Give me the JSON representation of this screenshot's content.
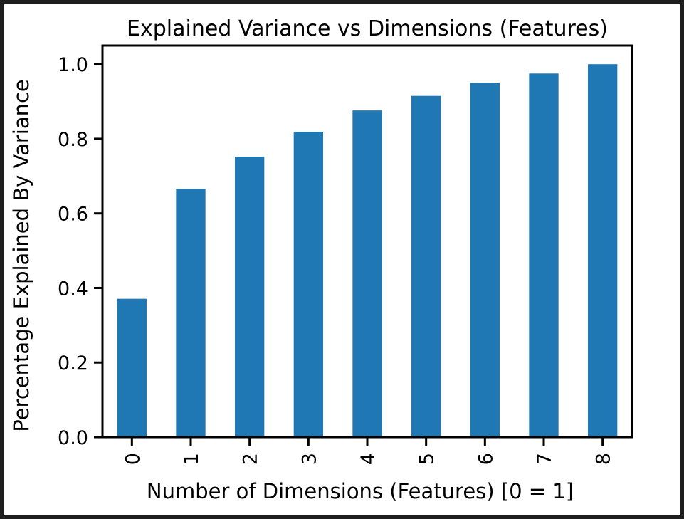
{
  "chart_data": {
    "type": "bar",
    "title": "Explained Variance vs Dimensions (Features)",
    "xlabel": "Number of Dimensions (Features) [0 = 1]",
    "ylabel": "Percentage Explained By Variance",
    "categories": [
      "0",
      "1",
      "2",
      "3",
      "4",
      "5",
      "6",
      "7",
      "8"
    ],
    "values": [
      0.371,
      0.666,
      0.752,
      0.819,
      0.876,
      0.915,
      0.95,
      0.975,
      1.0
    ],
    "ylim": [
      0,
      1.05
    ],
    "yticks": [
      "0.0",
      "0.2",
      "0.4",
      "0.6",
      "0.8",
      "1.0"
    ],
    "ytick_values": [
      0,
      0.2,
      0.4,
      0.6,
      0.8,
      1.0
    ],
    "grid": false,
    "legend": "none",
    "bar_color": "#1f77b4",
    "frame_color": "#000000",
    "background_color": "#ffffff",
    "outer_background_color": "#1e1e1e"
  }
}
